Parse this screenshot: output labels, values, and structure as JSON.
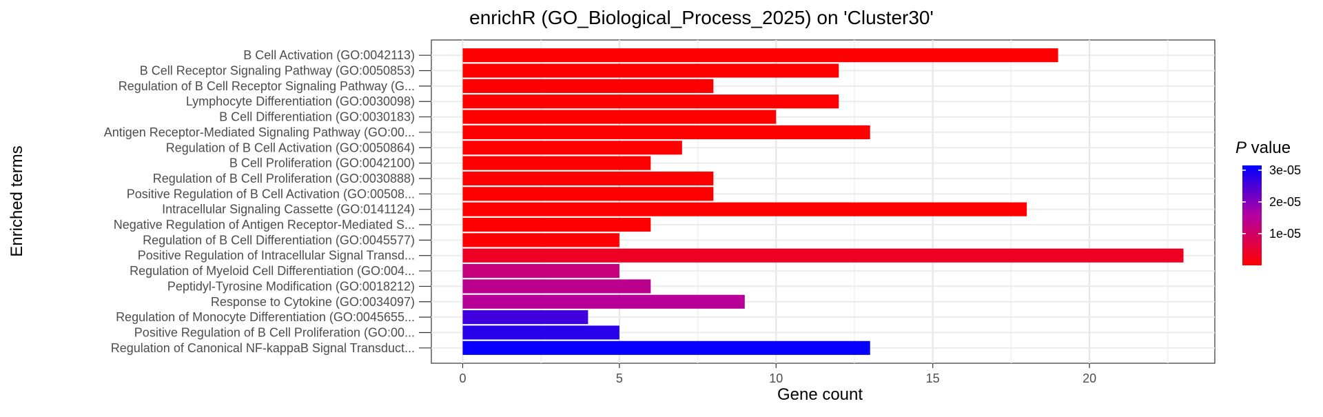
{
  "chart_data": {
    "type": "bar",
    "orientation": "horizontal",
    "title": "enrichR (GO_Biological_Process_2025) on 'Cluster30'",
    "xlabel": "Gene count",
    "ylabel": "Enriched terms",
    "xlim": [
      -1,
      24
    ],
    "xticks": [
      0,
      5,
      10,
      15,
      20
    ],
    "grid": true,
    "legend": {
      "title_italic": "P",
      "title_rest": " value",
      "position": "right",
      "ticks": [
        {
          "label": "3e-05",
          "value": 3e-05
        },
        {
          "label": "2e-05",
          "value": 2e-05
        },
        {
          "label": "1e-05",
          "value": 1e-05
        }
      ],
      "range": [
        0.0,
        3.15e-05
      ],
      "color_low": "#ff0000",
      "color_high": "#0000ff"
    },
    "categories": [
      "B Cell Activation (GO:0042113)",
      "B Cell Receptor Signaling Pathway (GO:0050853)",
      "Regulation of B Cell Receptor Signaling Pathway (G...",
      "Lymphocyte Differentiation (GO:0030098)",
      "B Cell Differentiation (GO:0030183)",
      "Antigen Receptor-Mediated Signaling Pathway (GO:00...",
      "Regulation of B Cell Activation (GO:0050864)",
      "B Cell Proliferation (GO:0042100)",
      "Regulation of B Cell Proliferation (GO:0030888)",
      "Positive Regulation of B Cell Activation (GO:00508...",
      "Intracellular Signaling Cassette (GO:0141124)",
      "Negative Regulation of Antigen Receptor-Mediated S...",
      "Regulation of B Cell Differentiation (GO:0045577)",
      "Positive Regulation of Intracellular Signal Transd...",
      "Regulation of Myeloid Cell Differentiation (GO:004...",
      "Peptidyl-Tyrosine Modification (GO:0018212)",
      "Response to Cytokine (GO:0034097)",
      "Regulation of Monocyte Differentiation (GO:0045655...",
      "Positive Regulation of B Cell Proliferation (GO:00...",
      "Regulation of Canonical NF-kappaB Signal Transduct..."
    ],
    "values": [
      19,
      12,
      8,
      12,
      10,
      13,
      7,
      6,
      8,
      8,
      18,
      6,
      5,
      23,
      5,
      6,
      9,
      4,
      5,
      13
    ],
    "p_values": [
      1e-10,
      1e-09,
      1e-08,
      2e-09,
      5e-09,
      1e-08,
      2e-08,
      3e-08,
      4e-08,
      6e-08,
      1e-07,
      2e-07,
      4e-07,
      3.5e-06,
      1.2e-05,
      1.4e-05,
      1.5e-05,
      2.6e-05,
      2.8e-05,
      3.1e-05
    ]
  }
}
